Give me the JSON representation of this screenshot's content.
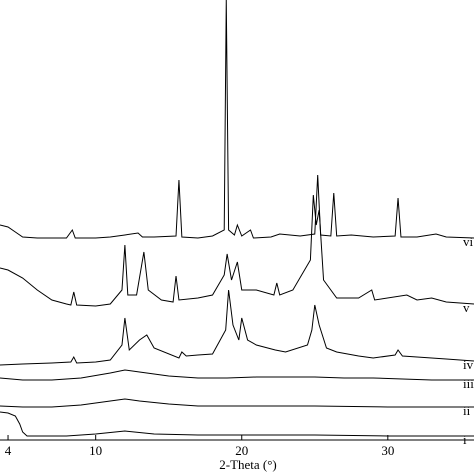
{
  "chart_data": {
    "type": "line",
    "xlabel": "2-Theta (°)",
    "xlim": [
      3.45,
      35.9
    ],
    "ylim": [
      0,
      440
    ],
    "xticks": [
      4,
      10,
      20,
      30
    ],
    "series": [
      {
        "name": "vi",
        "color": "#000000",
        "x": [
          3.45,
          4,
          4.5,
          5,
          6,
          7,
          8,
          8.4,
          8.6,
          10,
          11,
          12,
          12.9,
          13.2,
          14,
          15.5,
          15.7,
          15.9,
          17,
          18,
          18.8,
          18.94,
          19.1,
          19.5,
          19.7,
          20,
          20.6,
          20.8,
          22,
          22.6,
          24,
          25,
          25.2,
          25.4,
          26.1,
          26.3,
          26.5,
          27.5,
          29,
          30.5,
          30.7,
          30.9,
          32,
          33.3,
          34,
          35.9
        ],
        "values": [
          215,
          213,
          208,
          203,
          202,
          202,
          202,
          210,
          202,
          202,
          203,
          205,
          207,
          203,
          203,
          204,
          260,
          203,
          202,
          204,
          210,
          440,
          210,
          205,
          215,
          204,
          210,
          202,
          203,
          206,
          204,
          206,
          265,
          205,
          204,
          247,
          204,
          205,
          203,
          204,
          242,
          203,
          203,
          206,
          203,
          202
        ]
      },
      {
        "name": "v",
        "color": "#000000",
        "x": [
          3.45,
          4,
          5,
          6,
          7,
          8,
          8.3,
          8.5,
          8.7,
          10,
          11,
          11.8,
          12,
          12.2,
          12.8,
          13.3,
          13.6,
          14.5,
          15.3,
          15.5,
          15.7,
          17,
          18,
          18.8,
          19.0,
          19.3,
          19.7,
          20,
          21,
          22.2,
          22.4,
          22.6,
          23.5,
          24.7,
          24.9,
          25.1,
          25.3,
          25.6,
          26.5,
          28,
          28.9,
          29.1,
          31.3,
          32,
          33,
          34,
          35.9
        ],
        "values": [
          172,
          170,
          162,
          150,
          140,
          136,
          135,
          148,
          135,
          134,
          136,
          150,
          195,
          145,
          145,
          188,
          150,
          140,
          138,
          164,
          140,
          142,
          145,
          165,
          186,
          160,
          178,
          150,
          150,
          145,
          157,
          145,
          150,
          180,
          245,
          215,
          230,
          160,
          142,
          142,
          150,
          140,
          145,
          140,
          142,
          138,
          136
        ]
      },
      {
        "name": "iv",
        "color": "#000000",
        "x": [
          3.45,
          5,
          7,
          8.3,
          8.5,
          8.7,
          10,
          11,
          11.8,
          12,
          12.3,
          13,
          13.5,
          14,
          15.7,
          15.9,
          16.2,
          17,
          18,
          18.9,
          19.1,
          19.4,
          19.8,
          20,
          20.4,
          21,
          22.3,
          23,
          24.5,
          24.8,
          25,
          25.3,
          25.8,
          26.5,
          28,
          29,
          30.5,
          30.7,
          31,
          32,
          33,
          34,
          35.9
        ],
        "values": [
          75,
          76,
          77,
          78,
          83,
          77,
          78,
          80,
          95,
          122,
          90,
          100,
          105,
          92,
          82,
          88,
          84,
          85,
          86,
          110,
          150,
          115,
          100,
          122,
          100,
          95,
          90,
          88,
          95,
          110,
          135,
          115,
          92,
          88,
          84,
          82,
          85,
          90,
          84,
          83,
          82,
          81,
          79
        ]
      },
      {
        "name": "iii",
        "color": "#000000",
        "x": [
          3.45,
          5,
          7,
          9,
          11,
          12,
          13,
          15,
          17,
          19,
          21,
          23,
          25,
          27,
          29,
          31,
          33,
          35.9
        ],
        "values": [
          62,
          60,
          60,
          62,
          67,
          70,
          68,
          64,
          62,
          62,
          63,
          63,
          63,
          62,
          62,
          61,
          60,
          60
        ]
      },
      {
        "name": "ii",
        "color": "#000000",
        "x": [
          3.45,
          5,
          7,
          9,
          11,
          12,
          13,
          15,
          17,
          20,
          25,
          30,
          35.9
        ],
        "values": [
          34,
          33,
          33,
          35,
          39,
          41,
          39,
          36,
          34,
          34,
          34,
          33,
          33
        ]
      },
      {
        "name": "i",
        "color": "#000000",
        "x": [
          3.45,
          4,
          4.5,
          4.8,
          5,
          5.3,
          6,
          8,
          10,
          12,
          14,
          17,
          20,
          25,
          30,
          35.9
        ],
        "values": [
          28,
          27,
          24,
          16,
          8,
          4,
          4,
          4,
          6,
          9,
          6,
          5,
          5,
          5,
          4,
          4
        ]
      }
    ]
  }
}
